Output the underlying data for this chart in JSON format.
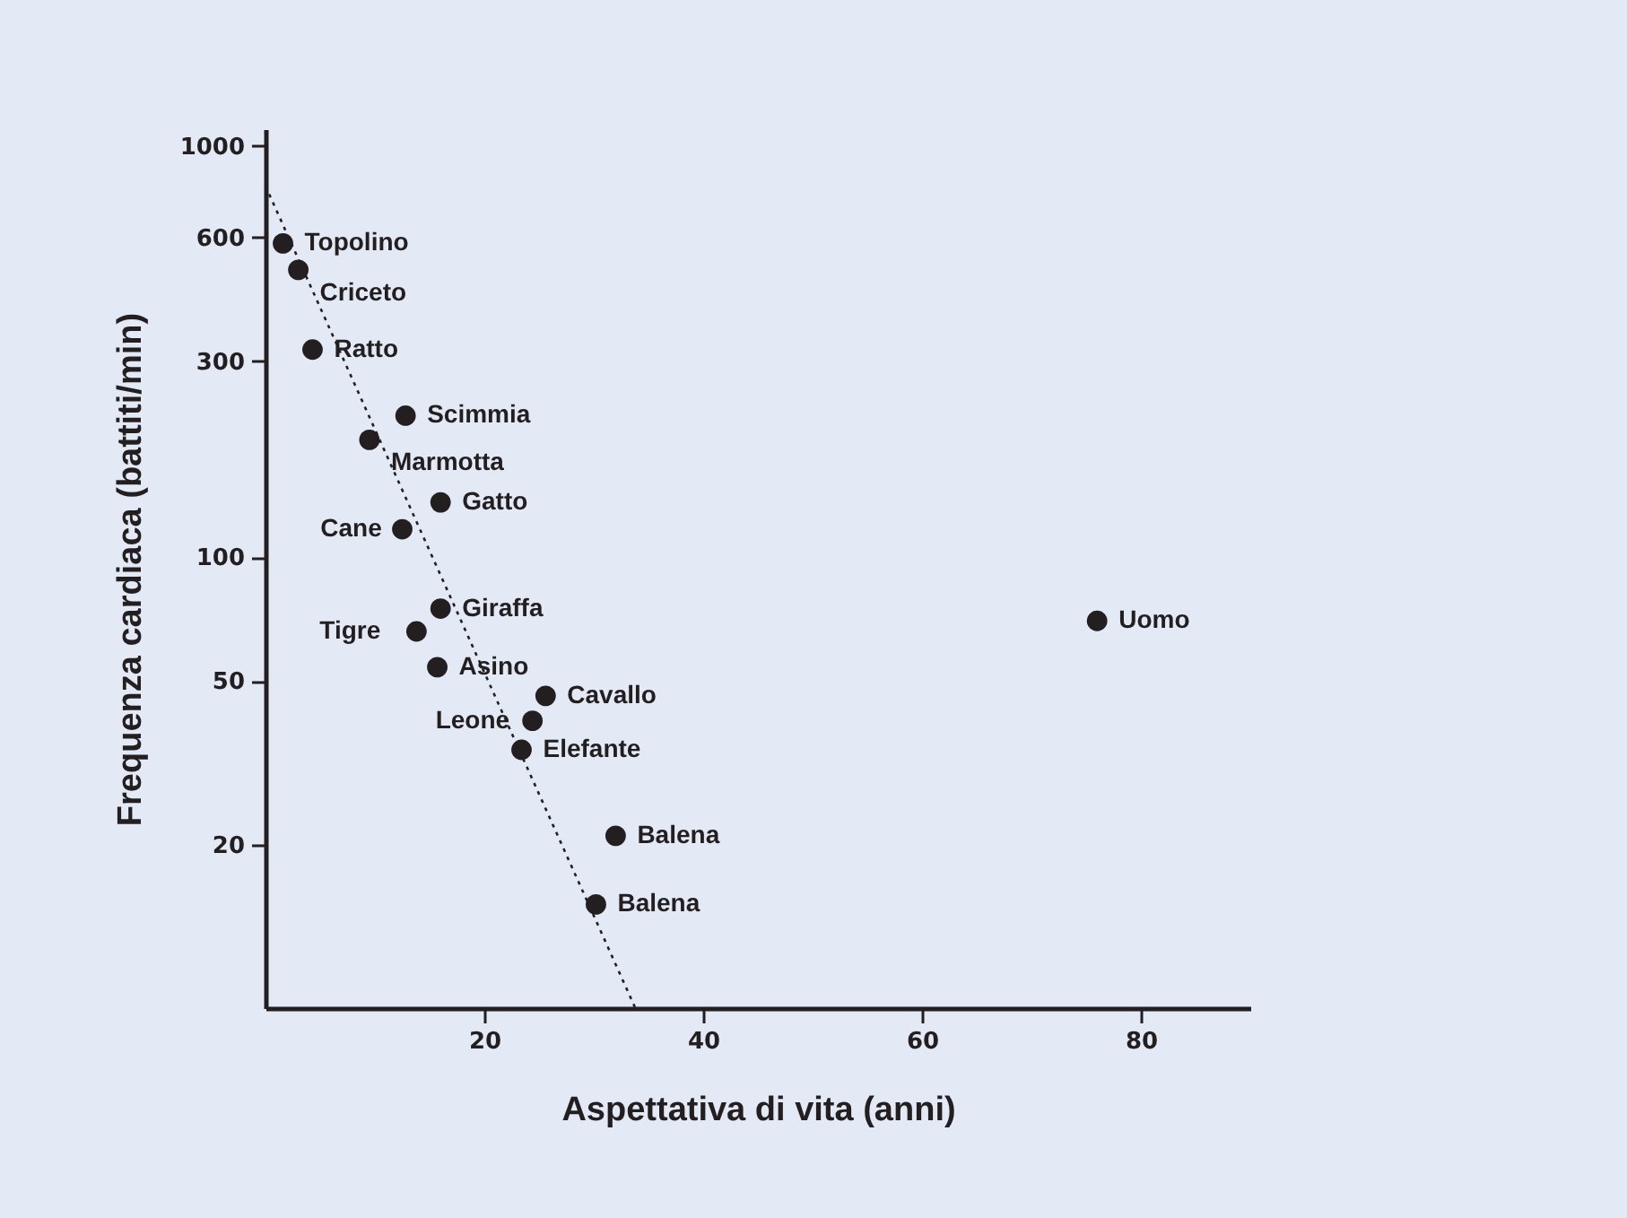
{
  "chart_data": {
    "type": "scatter",
    "xlabel": "Aspettativa di vita (anni)",
    "ylabel": "Frequenza cardiaca (battiti/min)",
    "xlim": [
      0,
      90
    ],
    "xticks": [
      20,
      40,
      60,
      80
    ],
    "ylim": [
      8,
      1100
    ],
    "yticks": [
      20,
      50,
      100,
      300,
      600,
      1000
    ],
    "log": "y",
    "grid": false,
    "marker": "circle",
    "series": [
      {
        "type": "scatter",
        "color": "#231f20",
        "x": [
          1.6,
          3,
          4.3,
          12.8,
          9.5,
          16,
          12.5,
          16,
          13.8,
          15.7,
          25.6,
          24.4,
          23.4,
          32,
          30.2,
          76
        ],
        "values": [
          580,
          500,
          320,
          221,
          193,
          136,
          117,
          75,
          66,
          54,
          46,
          40,
          34,
          21,
          14.3,
          70
        ]
      },
      {
        "type": "line",
        "color": "#231f20",
        "line_style": "dotted",
        "marker": "none",
        "x": [
          0,
          33.8
        ],
        "values": [
          800,
          8
        ]
      }
    ],
    "annotations": [
      {
        "text": "Topolino",
        "x": 1.6,
        "y": 580
      },
      {
        "text": "Criceto",
        "x": 3,
        "y": 500
      },
      {
        "text": "Ratto",
        "x": 4.3,
        "y": 320
      },
      {
        "text": "Scimmia",
        "x": 12.8,
        "y": 221
      },
      {
        "text": "Marmotta",
        "x": 9.5,
        "y": 193
      },
      {
        "text": "Gatto",
        "x": 16,
        "y": 136
      },
      {
        "text": "Cane",
        "x": 12.5,
        "y": 117
      },
      {
        "text": "Giraffa",
        "x": 16,
        "y": 75
      },
      {
        "text": "Tigre",
        "x": 13.8,
        "y": 66
      },
      {
        "text": "Asino",
        "x": 15.7,
        "y": 54
      },
      {
        "text": "Cavallo",
        "x": 25.6,
        "y": 46
      },
      {
        "text": "Leone",
        "x": 24.4,
        "y": 40
      },
      {
        "text": "Elefante",
        "x": 23.4,
        "y": 34
      },
      {
        "text": "Balena",
        "x": 32,
        "y": 21
      },
      {
        "text": "Balena",
        "x": 30.2,
        "y": 14.3
      },
      {
        "text": "Uomo",
        "x": 76,
        "y": 70
      }
    ]
  }
}
